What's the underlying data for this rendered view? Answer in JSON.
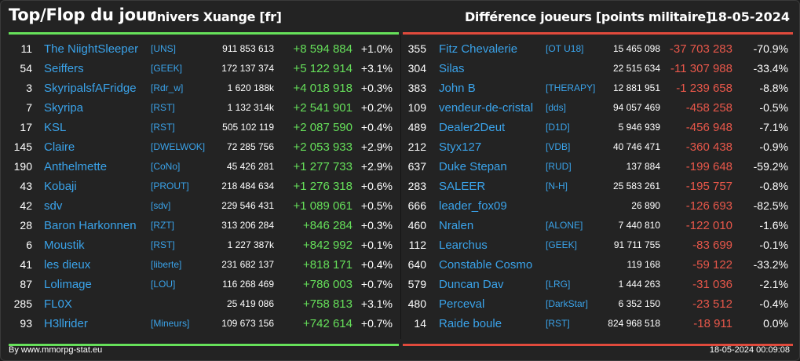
{
  "header": {
    "title": "Top/Flop du jour",
    "universe": "Univers Xuange [fr]",
    "metric": "Différence joueurs [points militaire]",
    "date": "18-05-2024"
  },
  "footer": {
    "source": "By www.mmorpg-stat.eu",
    "timestamp": "18-05-2024 00:09:08"
  },
  "colors": {
    "top_accent": "#66e05a",
    "flop_accent": "#e04a3c",
    "name_color": "#3aa3ea"
  },
  "top": [
    {
      "rank": "11",
      "name": "The NiightSleeper",
      "alliance": "[UNS]",
      "points": "911 853 613",
      "diff": "+8 594 884",
      "pct": "+1.0%"
    },
    {
      "rank": "54",
      "name": "Seiffers",
      "alliance": "[GEEK]",
      "points": "172 137 374",
      "diff": "+5 122 914",
      "pct": "+3.1%"
    },
    {
      "rank": "3",
      "name": "SkyripalsfAFridge",
      "alliance": "[Rdr_w]",
      "points": "1 620 188k",
      "diff": "+4 018 918",
      "pct": "+0.3%"
    },
    {
      "rank": "7",
      "name": "Skyripa",
      "alliance": "[RST]",
      "points": "1 132 314k",
      "diff": "+2 541 901",
      "pct": "+0.2%"
    },
    {
      "rank": "17",
      "name": "KSL",
      "alliance": "[RST]",
      "points": "505 102 119",
      "diff": "+2 087 590",
      "pct": "+0.4%"
    },
    {
      "rank": "145",
      "name": "Claire",
      "alliance": "[DWELWOK]",
      "points": "72 285 756",
      "diff": "+2 053 933",
      "pct": "+2.9%"
    },
    {
      "rank": "190",
      "name": "Anthelmette",
      "alliance": "[CoNo]",
      "points": "45 426 281",
      "diff": "+1 277 733",
      "pct": "+2.9%"
    },
    {
      "rank": "43",
      "name": "Kobaji",
      "alliance": "[PROUT]",
      "points": "218 484 634",
      "diff": "+1 276 318",
      "pct": "+0.6%"
    },
    {
      "rank": "42",
      "name": "sdv",
      "alliance": "[sdv]",
      "points": "229 546 431",
      "diff": "+1 089 061",
      "pct": "+0.5%"
    },
    {
      "rank": "28",
      "name": "Baron Harkonnen",
      "alliance": "[RZT]",
      "points": "313 206 284",
      "diff": "+846 284",
      "pct": "+0.3%"
    },
    {
      "rank": "6",
      "name": "Moustik",
      "alliance": "[RST]",
      "points": "1 227 387k",
      "diff": "+842 992",
      "pct": "+0.1%"
    },
    {
      "rank": "41",
      "name": "les dieux",
      "alliance": "[liberte]",
      "points": "231 682 137",
      "diff": "+818 171",
      "pct": "+0.4%"
    },
    {
      "rank": "87",
      "name": "Lolimage",
      "alliance": "[LOU]",
      "points": "116 268 469",
      "diff": "+786 003",
      "pct": "+0.7%"
    },
    {
      "rank": "285",
      "name": "FL0X",
      "alliance": "",
      "points": "25 419 086",
      "diff": "+758 813",
      "pct": "+3.1%"
    },
    {
      "rank": "93",
      "name": "H3llrider",
      "alliance": "[Mineurs]",
      "points": "109 673 156",
      "diff": "+742 614",
      "pct": "+0.7%"
    }
  ],
  "flop": [
    {
      "rank": "355",
      "name": "Fitz Chevalerie",
      "alliance": "[OT U18]",
      "points": "15 465 098",
      "diff": "-37 703 283",
      "pct": "-70.9%"
    },
    {
      "rank": "304",
      "name": "Silas",
      "alliance": "",
      "points": "22 515 634",
      "diff": "-11 307 988",
      "pct": "-33.4%"
    },
    {
      "rank": "383",
      "name": "John B",
      "alliance": "[THERAPY]",
      "points": "12 881 951",
      "diff": "-1 239 658",
      "pct": "-8.8%"
    },
    {
      "rank": "109",
      "name": "vendeur-de-cristal",
      "alliance": "[dds]",
      "points": "94 057 469",
      "diff": "-458 258",
      "pct": "-0.5%"
    },
    {
      "rank": "489",
      "name": "Dealer2Deut",
      "alliance": "[D1D]",
      "points": "5 946 939",
      "diff": "-456 948",
      "pct": "-7.1%"
    },
    {
      "rank": "212",
      "name": "Styx127",
      "alliance": "[VDB]",
      "points": "40 746 471",
      "diff": "-360 438",
      "pct": "-0.9%"
    },
    {
      "rank": "637",
      "name": "Duke Stepan",
      "alliance": "[RUD]",
      "points": "137 884",
      "diff": "-199 648",
      "pct": "-59.2%"
    },
    {
      "rank": "283",
      "name": "SALEER",
      "alliance": "[N-H]",
      "points": "25 583 261",
      "diff": "-195 757",
      "pct": "-0.8%"
    },
    {
      "rank": "666",
      "name": "leader_fox09",
      "alliance": "",
      "points": "26 890",
      "diff": "-126 693",
      "pct": "-82.5%"
    },
    {
      "rank": "460",
      "name": "Nralen",
      "alliance": "[ALONE]",
      "points": "7 440 810",
      "diff": "-122 010",
      "pct": "-1.6%"
    },
    {
      "rank": "112",
      "name": "Learchus",
      "alliance": "[GEEK]",
      "points": "91 711 755",
      "diff": "-83 699",
      "pct": "-0.1%"
    },
    {
      "rank": "640",
      "name": "Constable Cosmo",
      "alliance": "",
      "points": "119 168",
      "diff": "-59 122",
      "pct": "-33.2%"
    },
    {
      "rank": "579",
      "name": "Duncan Dav",
      "alliance": "[LRG]",
      "points": "1 444 263",
      "diff": "-31 036",
      "pct": "-2.1%"
    },
    {
      "rank": "480",
      "name": "Perceval",
      "alliance": "[DarkStar]",
      "points": "6 352 150",
      "diff": "-23 512",
      "pct": "-0.4%"
    },
    {
      "rank": "14",
      "name": "Raide boule",
      "alliance": "[RST]",
      "points": "824 968 518",
      "diff": "-18 911",
      "pct": "0.0%"
    }
  ]
}
